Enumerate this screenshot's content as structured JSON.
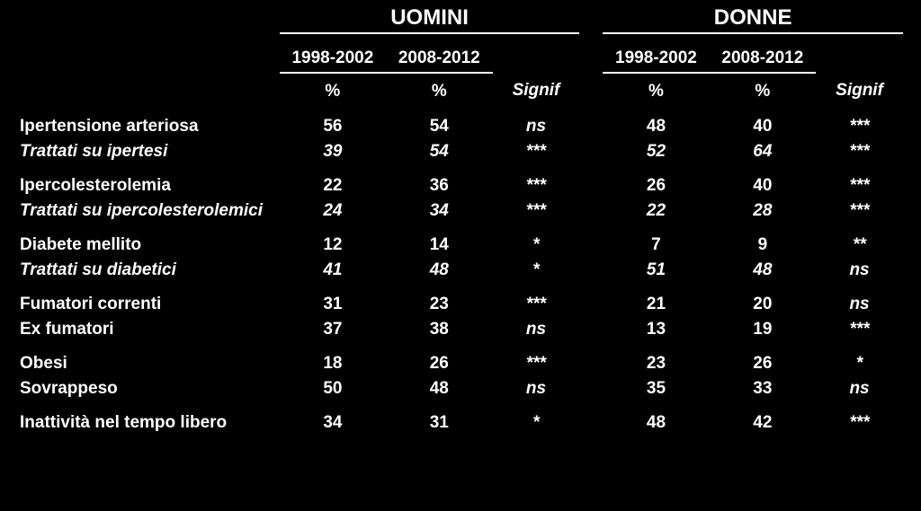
{
  "colors": {
    "background": "#000000",
    "text": "#ffffff",
    "rule": "#ffffff"
  },
  "table": {
    "type": "table",
    "groups": {
      "men": "UOMINI",
      "women": "DONNE"
    },
    "periods": {
      "p1": "1998-2002",
      "p2": "2008-2012"
    },
    "subheads": {
      "pct": "%",
      "signif": "Signif"
    },
    "rows": [
      {
        "label": "Ipertensione arteriosa",
        "italic": false,
        "m1": "56",
        "m2": "54",
        "ms": "ns",
        "w1": "48",
        "w2": "40",
        "ws": "***"
      },
      {
        "label": "Trattati su ipertesi",
        "italic": true,
        "m1": "39",
        "m2": "54",
        "ms": "***",
        "w1": "52",
        "w2": "64",
        "ws": "***"
      },
      {
        "gap": true
      },
      {
        "label": "Ipercolesterolemia",
        "italic": false,
        "m1": "22",
        "m2": "36",
        "ms": "***",
        "w1": "26",
        "w2": "40",
        "ws": "***"
      },
      {
        "label": "Trattati su ipercolesterolemici",
        "italic": true,
        "m1": "24",
        "m2": "34",
        "ms": "***",
        "w1": "22",
        "w2": "28",
        "ws": "***"
      },
      {
        "gap": true
      },
      {
        "label": "Diabete mellito",
        "italic": false,
        "m1": "12",
        "m2": "14",
        "ms": "*",
        "w1": "7",
        "w2": "9",
        "ws": "**"
      },
      {
        "label": "Trattati su diabetici",
        "italic": true,
        "m1": "41",
        "m2": "48",
        "ms": "*",
        "w1": "51",
        "w2": "48",
        "ws": "ns"
      },
      {
        "gap": true
      },
      {
        "label": "Fumatori correnti",
        "italic": false,
        "m1": "31",
        "m2": "23",
        "ms": "***",
        "w1": "21",
        "w2": "20",
        "ws": "ns"
      },
      {
        "label": "Ex fumatori",
        "italic": false,
        "m1": "37",
        "m2": "38",
        "ms": "ns",
        "w1": "13",
        "w2": "19",
        "ws": "***"
      },
      {
        "gap": true
      },
      {
        "label": "Obesi",
        "italic": false,
        "m1": "18",
        "m2": "26",
        "ms": "***",
        "w1": "23",
        "w2": "26",
        "ws": "*"
      },
      {
        "label": "Sovrappeso",
        "italic": false,
        "m1": "50",
        "m2": "48",
        "ms": "ns",
        "w1": "35",
        "w2": "33",
        "ws": "ns"
      },
      {
        "gap": true
      },
      {
        "label": "Inattività nel tempo libero",
        "italic": false,
        "m1": "34",
        "m2": "31",
        "ms": "*",
        "w1": "48",
        "w2": "42",
        "ws": "***"
      }
    ]
  }
}
